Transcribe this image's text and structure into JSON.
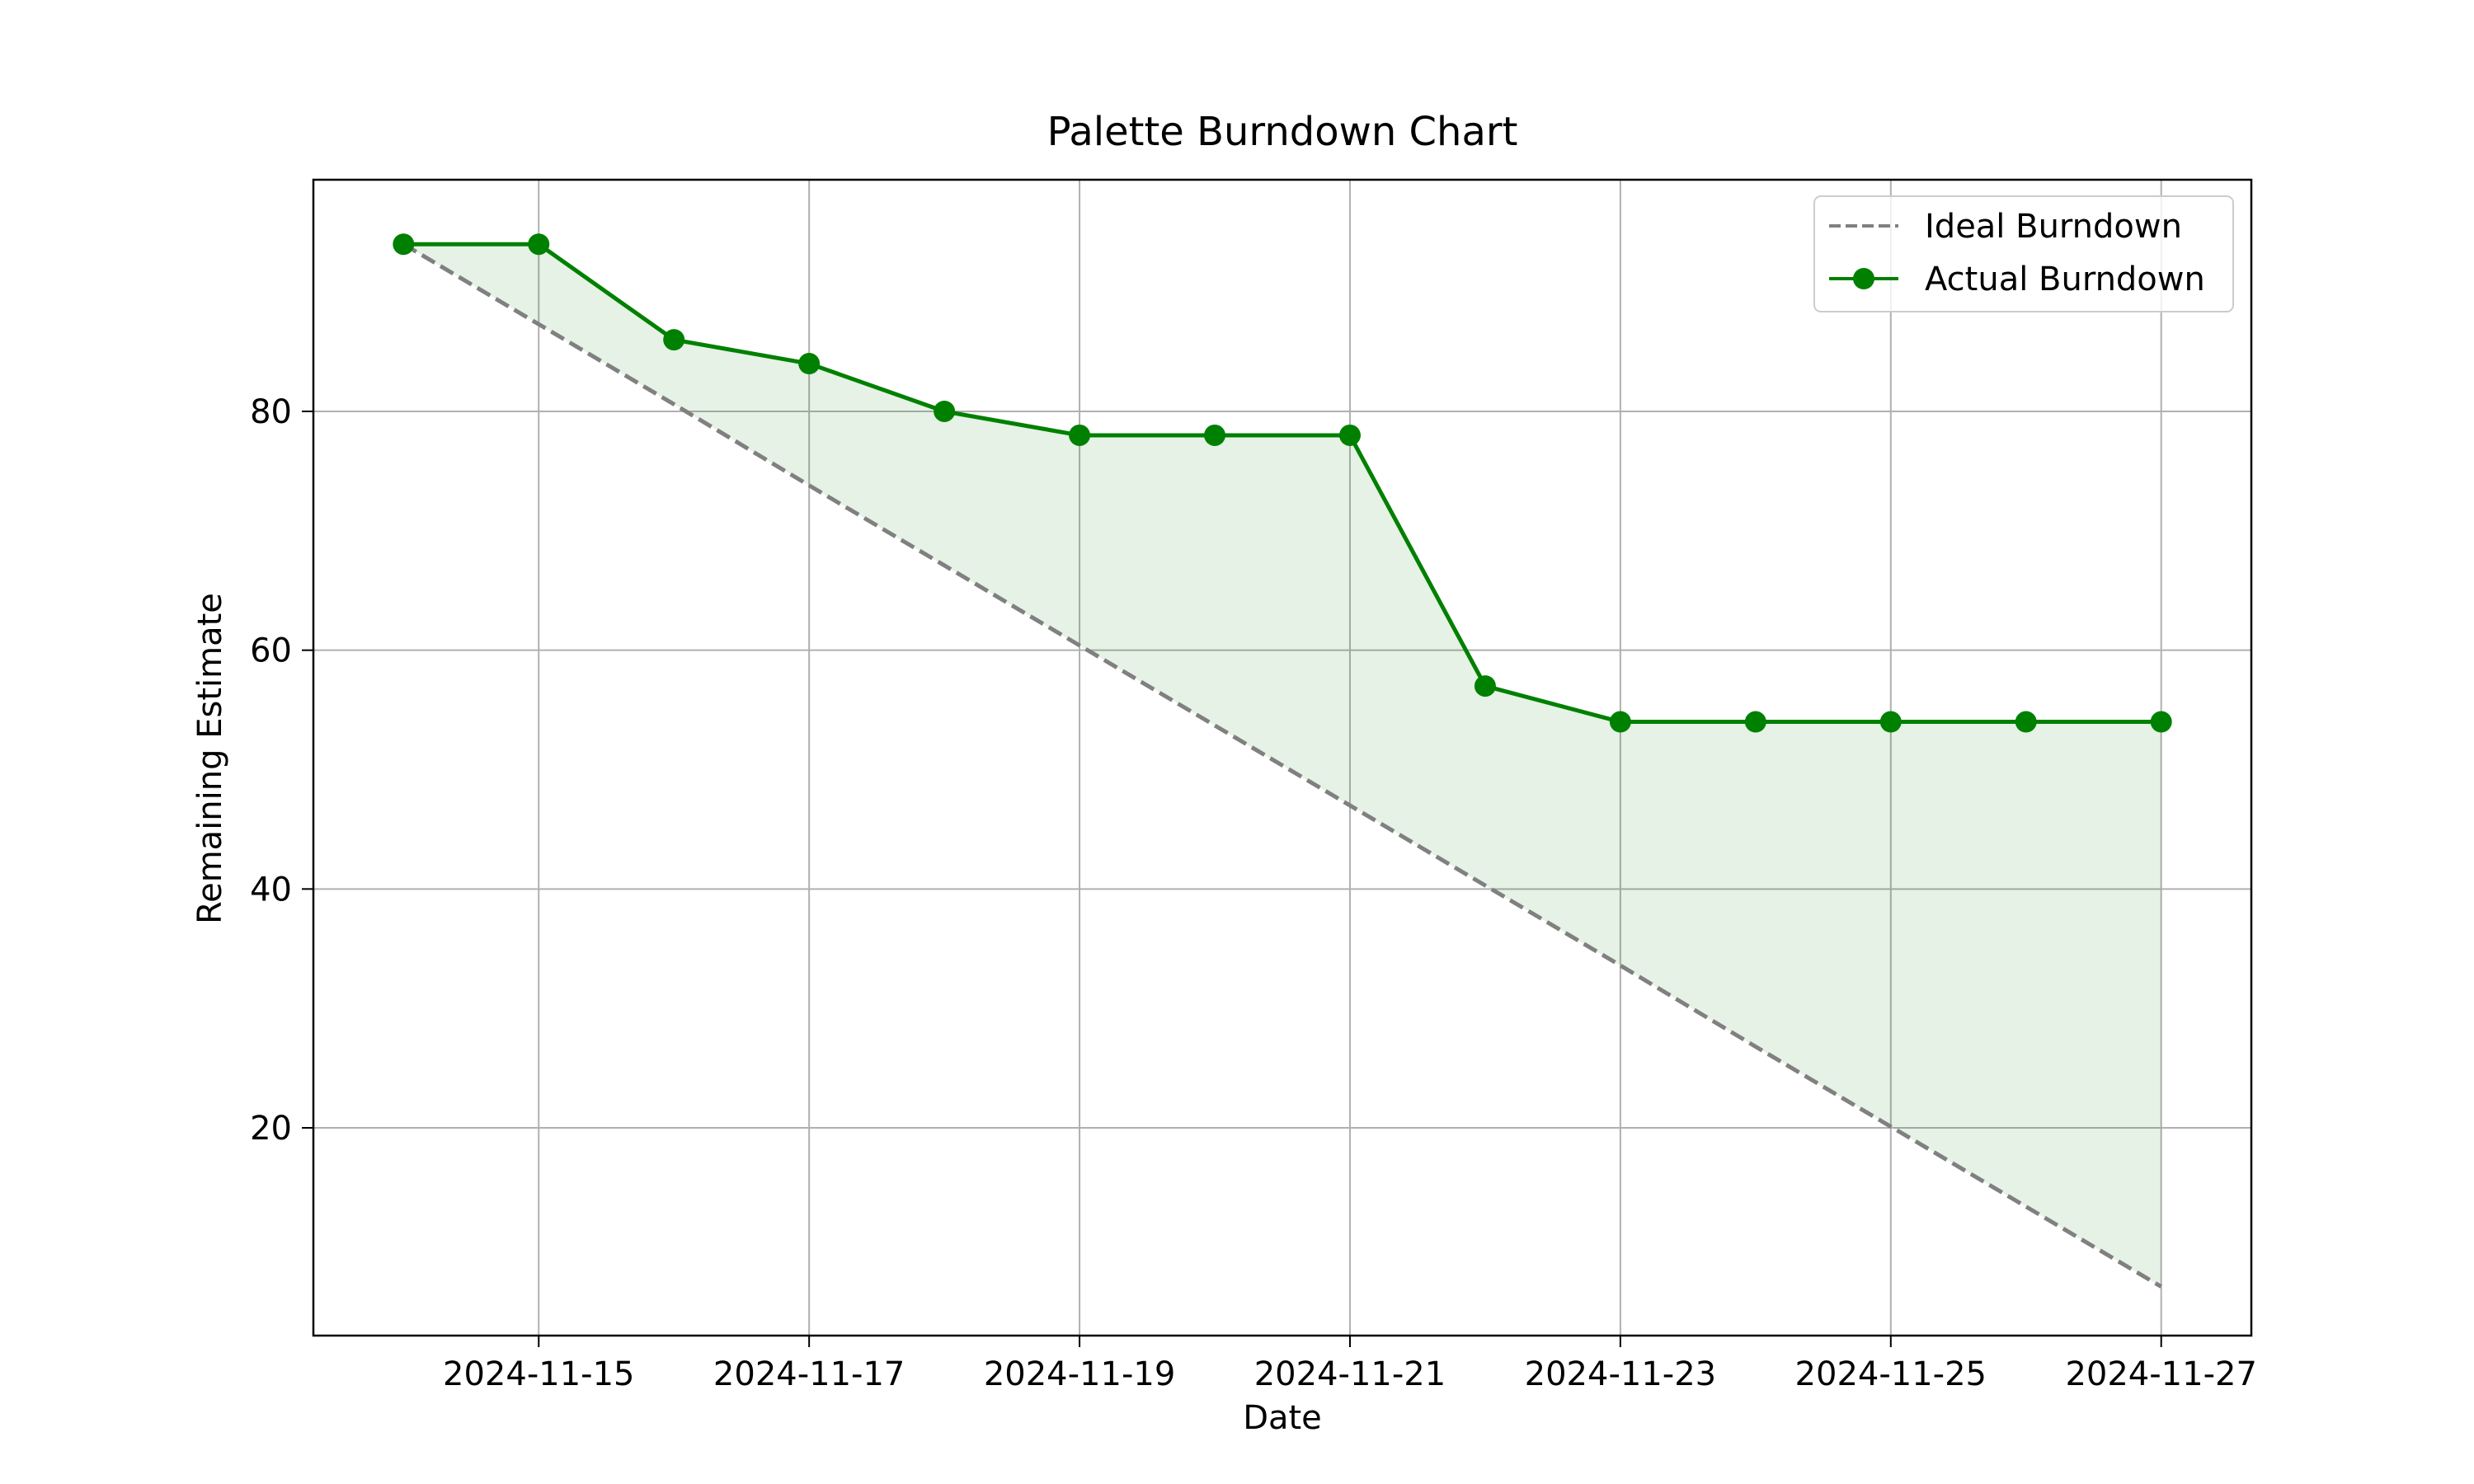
{
  "chart_data": {
    "type": "line",
    "title": "Palette Burndown Chart",
    "xlabel": "Date",
    "ylabel": "Remaining Estimate",
    "x": [
      "2024-11-14",
      "2024-11-15",
      "2024-11-16",
      "2024-11-17",
      "2024-11-18",
      "2024-11-19",
      "2024-11-20",
      "2024-11-21",
      "2024-11-22",
      "2024-11-23",
      "2024-11-24",
      "2024-11-25",
      "2024-11-26",
      "2024-11-27"
    ],
    "xticks": [
      "2024-11-15",
      "2024-11-17",
      "2024-11-19",
      "2024-11-21",
      "2024-11-23",
      "2024-11-25",
      "2024-11-27"
    ],
    "xlim": [
      "2024-11-13T08:00",
      "2024-11-27T16:00"
    ],
    "yticks": [
      20,
      40,
      60,
      80
    ],
    "ylim": [
      2.6,
      99.4
    ],
    "grid": true,
    "legend": "top-right",
    "series": [
      {
        "name": "Ideal Burndown",
        "style": "dashed",
        "color": "#808080",
        "values": [
          94,
          87.3,
          80.6,
          73.8,
          67.1,
          60.4,
          53.7,
          47.0,
          40.3,
          33.6,
          26.8,
          20.1,
          13.4,
          6.7
        ]
      },
      {
        "name": "Actual Burndown",
        "style": "solid-markers",
        "color": "#008000",
        "values": [
          94,
          94,
          86,
          84,
          80,
          78,
          78,
          78,
          57,
          54,
          54,
          54,
          54,
          54
        ]
      }
    ],
    "fill_between": {
      "color": "#008000",
      "opacity": 0.1
    }
  }
}
